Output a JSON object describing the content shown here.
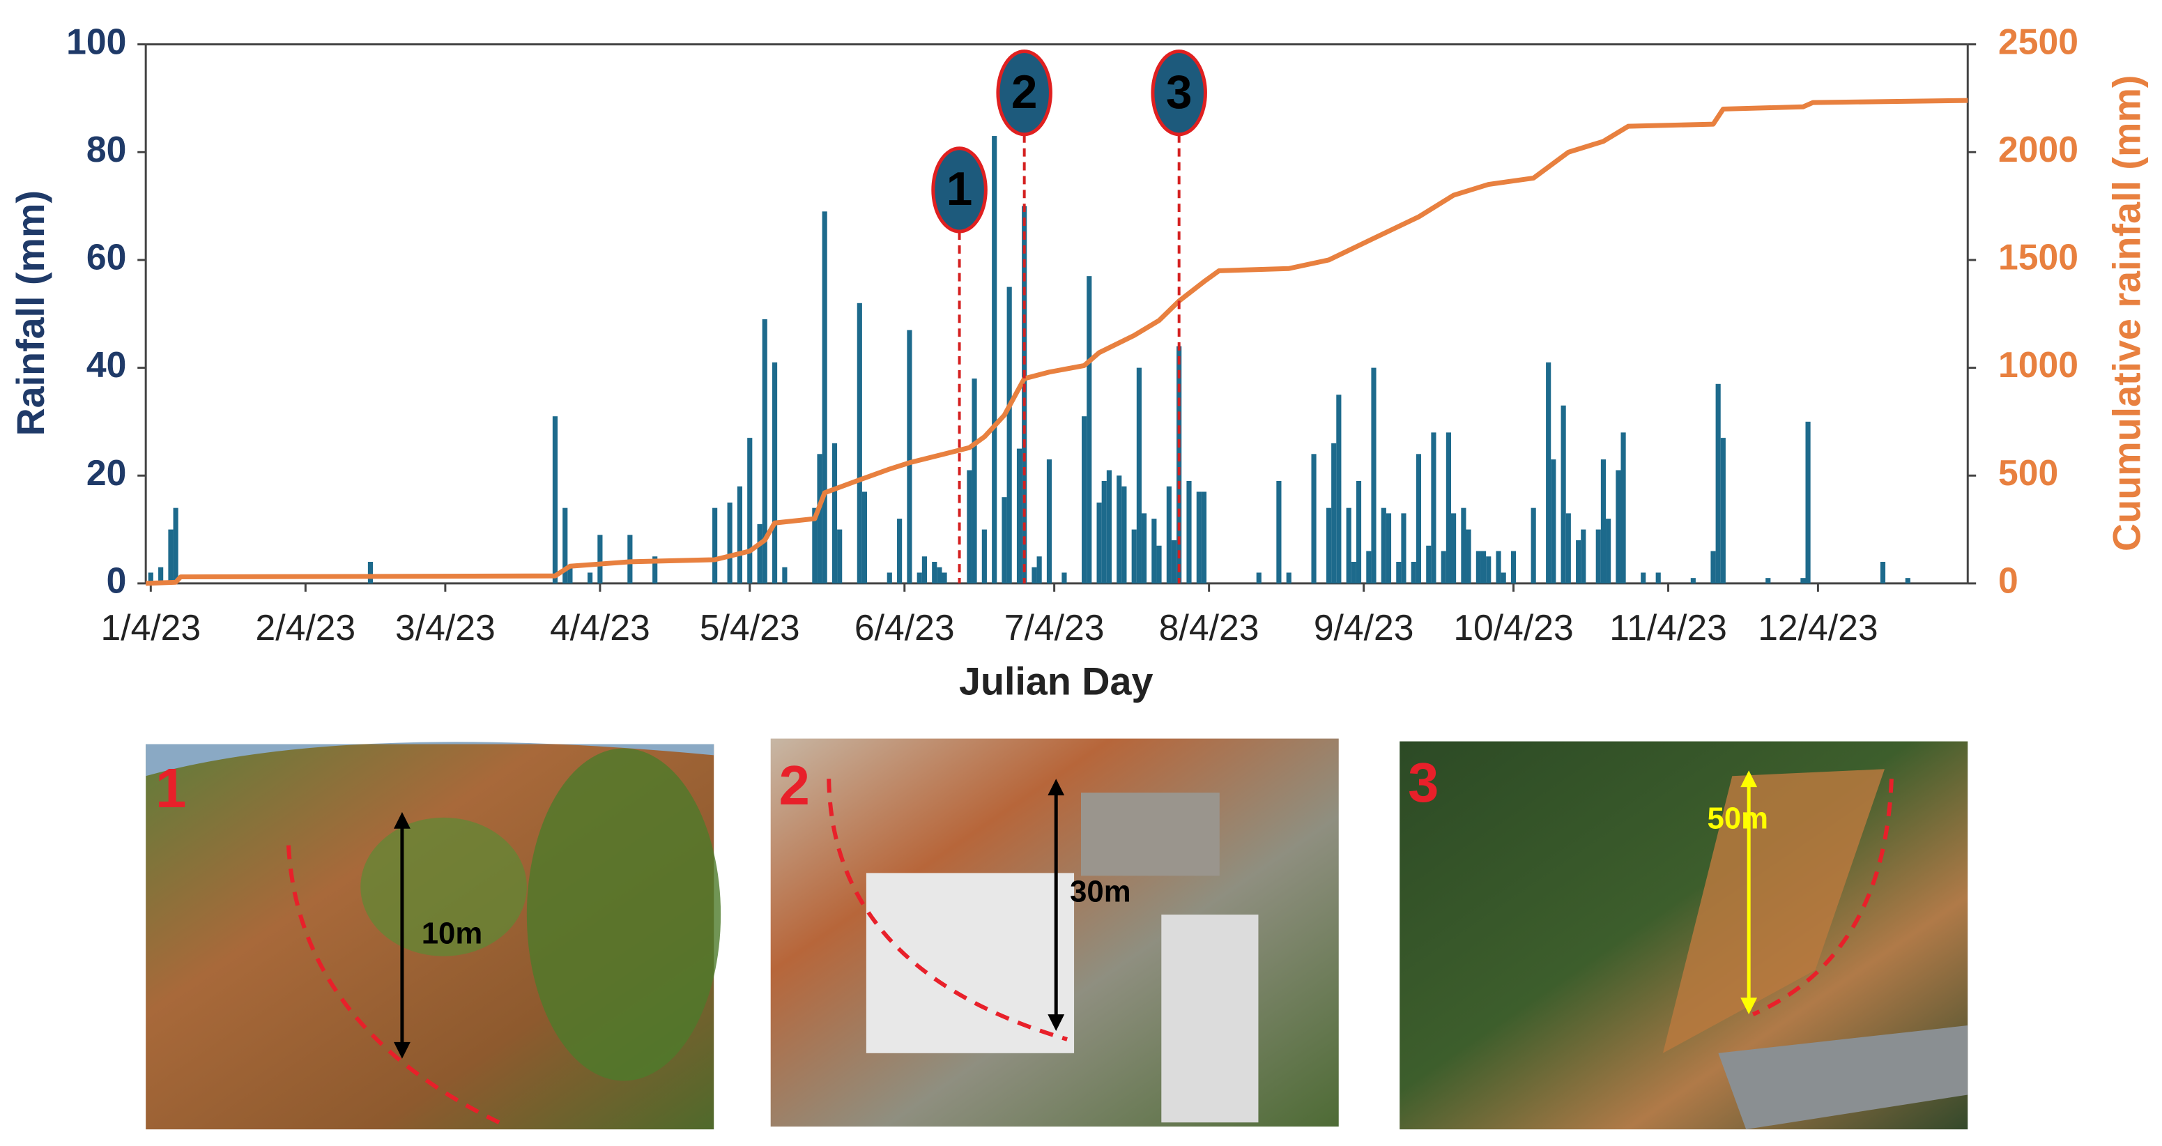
{
  "chart_data": {
    "type": "bar_line",
    "xlabel": "Julian Day",
    "ylabel": "Rainfall (mm)",
    "y2label": "Cuumulative rainfall (mm)",
    "xlim": [
      3,
      368
    ],
    "xticks": [
      {
        "value": 4,
        "label": "1/4/23"
      },
      {
        "value": 35,
        "label": "2/4/23"
      },
      {
        "value": 63,
        "label": "3/4/23"
      },
      {
        "value": 94,
        "label": "4/4/23"
      },
      {
        "value": 124,
        "label": "5/4/23"
      },
      {
        "value": 155,
        "label": "6/4/23"
      },
      {
        "value": 185,
        "label": "7/4/23"
      },
      {
        "value": 216,
        "label": "8/4/23"
      },
      {
        "value": 247,
        "label": "9/4/23"
      },
      {
        "value": 277,
        "label": "10/4/23"
      },
      {
        "value": 308,
        "label": "11/4/23"
      },
      {
        "value": 338,
        "label": "12/4/23"
      }
    ],
    "ylim": [
      0,
      100
    ],
    "yticks": [
      0,
      20,
      40,
      60,
      80,
      100
    ],
    "y2lim": [
      0,
      2500
    ],
    "y2ticks": [
      0,
      500,
      1000,
      1500,
      2000,
      2500
    ],
    "grid": false,
    "series": [
      {
        "type": "bar",
        "color": "#1d6a8c",
        "x": [
          4,
          6,
          8,
          9,
          48,
          85,
          87,
          88,
          92,
          94,
          100,
          105,
          117,
          120,
          122,
          124,
          126,
          127,
          129,
          131,
          137,
          138,
          139,
          141,
          142,
          146,
          147,
          152,
          154,
          156,
          158,
          159,
          161,
          162,
          163,
          168,
          169,
          171,
          173,
          175,
          176,
          178,
          179,
          181,
          182,
          184,
          187,
          191,
          192,
          194,
          195,
          196,
          198,
          199,
          201,
          202,
          203,
          205,
          206,
          208,
          209,
          210,
          212,
          214,
          215,
          226,
          230,
          232,
          237,
          240,
          241,
          242,
          244,
          245,
          246,
          248,
          249,
          251,
          252,
          254,
          255,
          257,
          258,
          260,
          261,
          263,
          264,
          265,
          267,
          268,
          270,
          271,
          272,
          274,
          275,
          277,
          281,
          284,
          285,
          287,
          288,
          290,
          291,
          294,
          295,
          296,
          298,
          299,
          303,
          306,
          313,
          317,
          318,
          319,
          328,
          335,
          336,
          351,
          356
        ],
        "values": [
          2,
          3,
          10,
          14,
          4,
          31,
          14,
          3,
          2,
          9,
          9,
          5,
          14,
          15,
          18,
          27,
          11,
          49,
          41,
          3,
          14,
          24,
          69,
          26,
          10,
          52,
          17,
          2,
          12,
          47,
          2,
          5,
          4,
          3,
          2,
          21,
          38,
          10,
          83,
          16,
          55,
          25,
          70,
          3,
          5,
          23,
          2,
          31,
          57,
          15,
          19,
          21,
          20,
          18,
          10,
          40,
          13,
          12,
          7,
          18,
          8,
          44,
          19,
          17,
          17,
          2,
          19,
          2,
          24,
          14,
          26,
          35,
          14,
          4,
          19,
          6,
          40,
          14,
          13,
          4,
          13,
          4,
          24,
          7,
          28,
          6,
          28,
          13,
          14,
          10,
          6,
          6,
          5,
          6,
          2,
          6,
          14,
          41,
          23,
          33,
          13,
          8,
          10,
          10,
          23,
          12,
          21,
          28,
          2,
          2,
          1,
          6,
          37,
          27,
          1,
          1,
          30,
          4,
          1
        ]
      },
      {
        "type": "line",
        "axis": "y2",
        "color": "#e8803f",
        "x": [
          3,
          9,
          10,
          85,
          88,
          100,
          117,
          124,
          127,
          129,
          137,
          139,
          146,
          152,
          156,
          163,
          168,
          171,
          175,
          179,
          184,
          191,
          194,
          201,
          206,
          210,
          215,
          218,
          232,
          240,
          249,
          258,
          265,
          272,
          281,
          288,
          295,
          300,
          317,
          319,
          335,
          337,
          368
        ],
        "values": [
          0,
          5,
          30,
          35,
          80,
          100,
          110,
          150,
          200,
          280,
          300,
          420,
          480,
          530,
          560,
          600,
          630,
          680,
          780,
          950,
          980,
          1010,
          1070,
          1150,
          1220,
          1310,
          1400,
          1450,
          1460,
          1500,
          1600,
          1700,
          1800,
          1850,
          1880,
          2000,
          2050,
          2120,
          2130,
          2200,
          2210,
          2230,
          2240
        ]
      }
    ],
    "annotations": [
      {
        "text": "1",
        "x": 166,
        "y": 73
      },
      {
        "text": "2",
        "x": 179,
        "y": 91
      },
      {
        "text": "3",
        "x": 210,
        "y": 91
      }
    ]
  },
  "photos": [
    {
      "label": "1",
      "height_label": "10m"
    },
    {
      "label": "2",
      "height_label": "30m"
    },
    {
      "label": "3",
      "height_label": "50m"
    }
  ]
}
